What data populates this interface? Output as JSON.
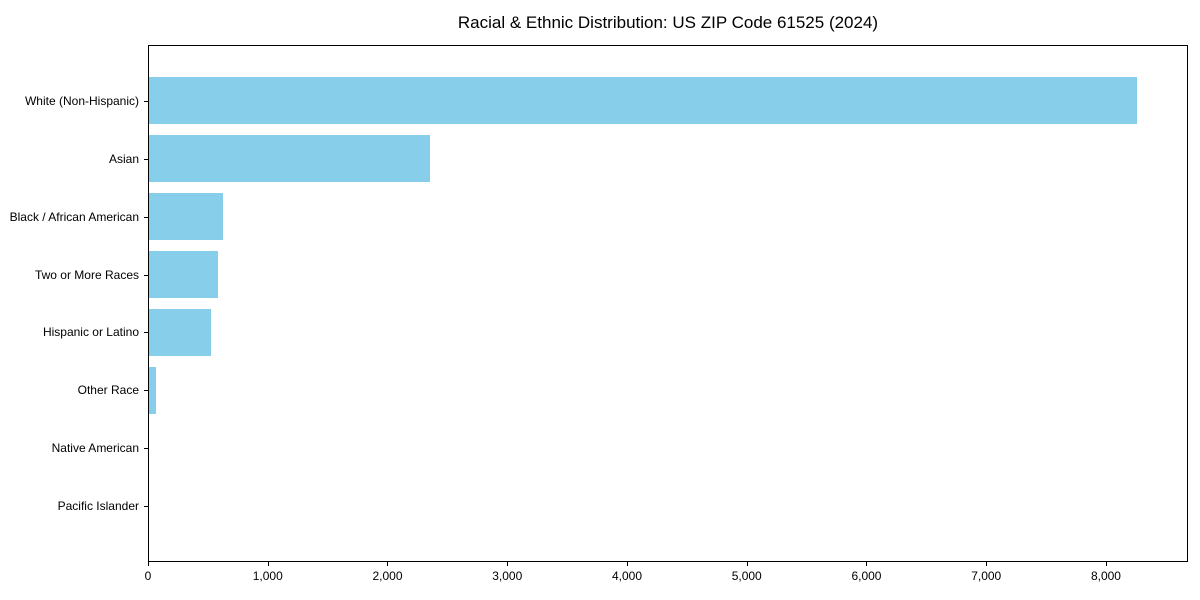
{
  "chart_data": {
    "type": "bar",
    "orientation": "horizontal",
    "title": "Racial & Ethnic Distribution: US ZIP Code 61525 (2024)",
    "categories": [
      "White (Non-Hispanic)",
      "Asian",
      "Black / African American",
      "Two or More Races",
      "Hispanic or Latino",
      "Other Race",
      "Native American",
      "Pacific Islander"
    ],
    "values": [
      8270,
      2355,
      620,
      575,
      520,
      60,
      0,
      0
    ],
    "xlabel": "",
    "ylabel": "",
    "xlim": [
      0,
      8685
    ],
    "xticks": [
      {
        "value": 0,
        "label": "0"
      },
      {
        "value": 1000,
        "label": "1,000"
      },
      {
        "value": 2000,
        "label": "2,000"
      },
      {
        "value": 3000,
        "label": "3,000"
      },
      {
        "value": 4000,
        "label": "4,000"
      },
      {
        "value": 5000,
        "label": "5,000"
      },
      {
        "value": 6000,
        "label": "6,000"
      },
      {
        "value": 7000,
        "label": "7,000"
      },
      {
        "value": 8000,
        "label": "8,000"
      }
    ],
    "grid": false,
    "legend": null,
    "bar_color": "#87CEEB",
    "spine_color": "#000000",
    "text_color": "#000000",
    "background_color": "#ffffff"
  }
}
